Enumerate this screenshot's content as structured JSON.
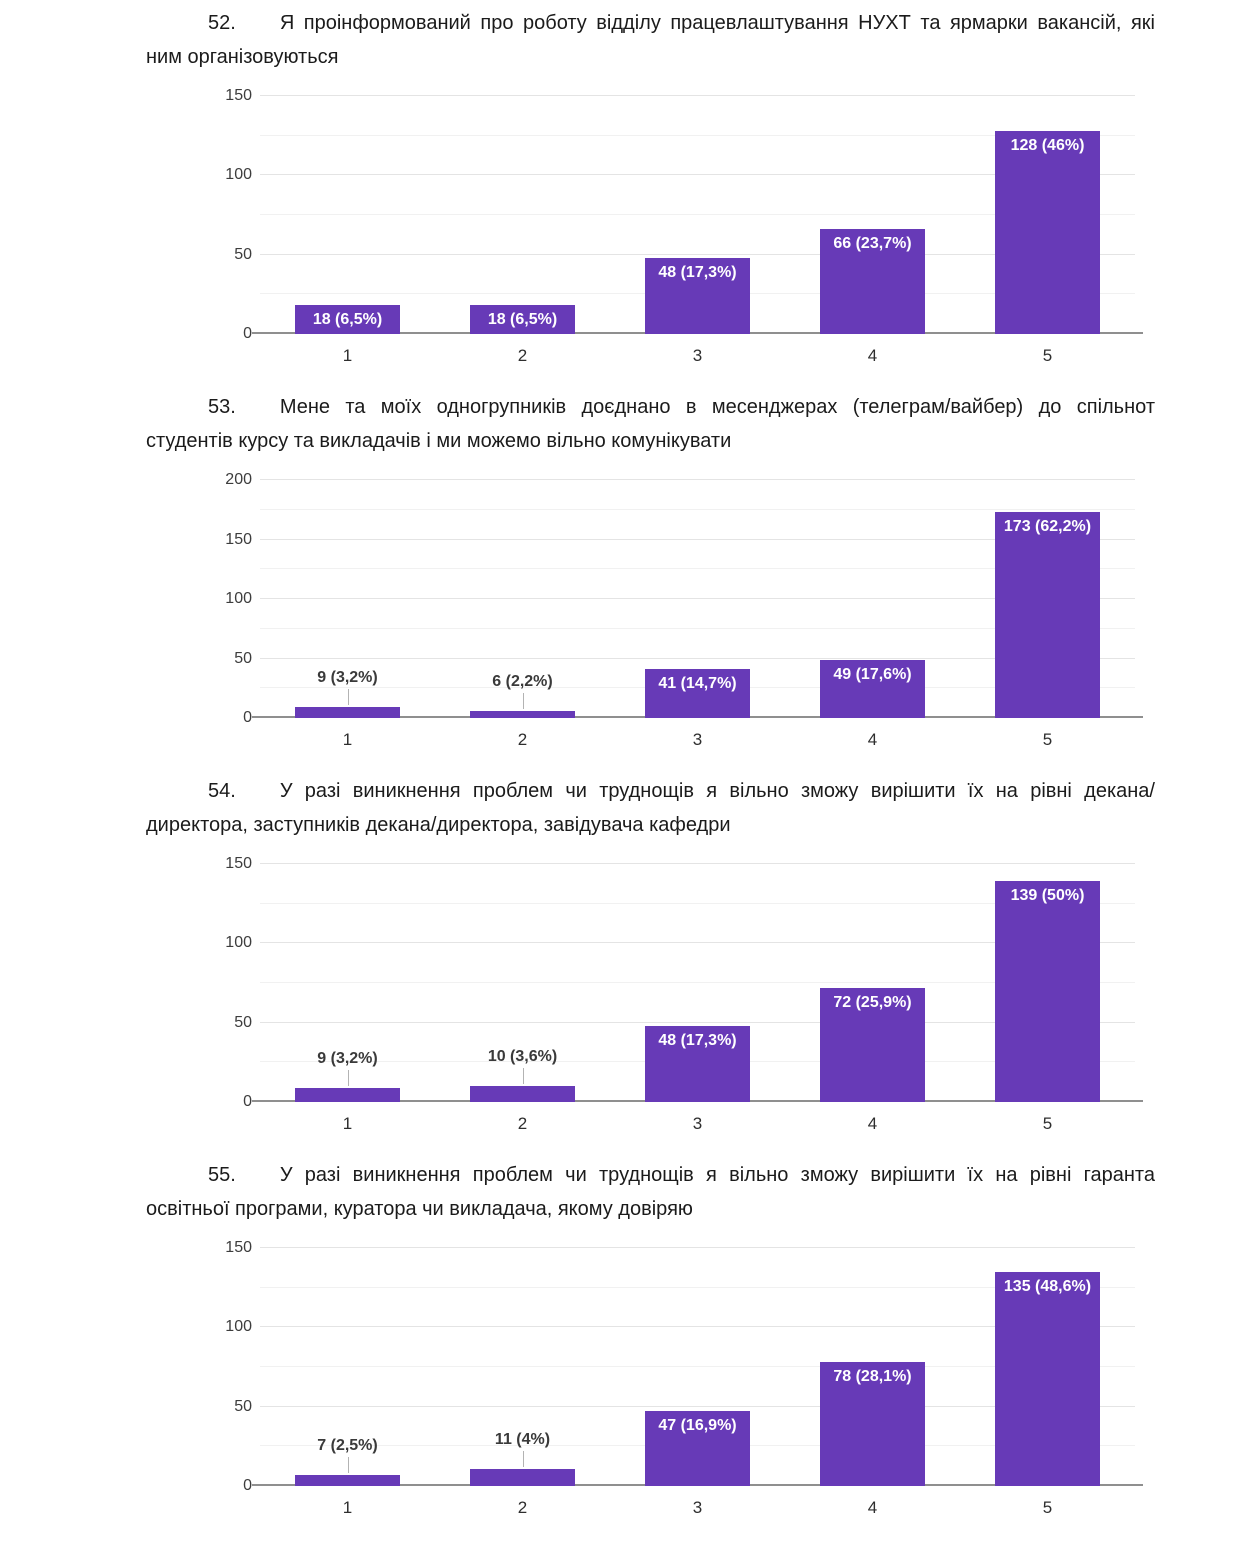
{
  "page": {
    "background": "#ffffff",
    "accent_color": "#673ab7",
    "questions": [
      {
        "number": "52.",
        "text": "Я проінформований про роботу відділу працевлаштування НУХТ та ярмарки вакансій, які ним організовуються"
      },
      {
        "number": "53.",
        "text": "Мене та моїх одногрупників доєднано в месенджерах (телеграм/вайбер) до спільнот студентів курсу та викладачів і ми можемо вільно комунікувати"
      },
      {
        "number": "54.",
        "text": "У разі виникнення проблем чи труднощів я вільно зможу вирішити їх на рівні декана/директора, заступників декана/директора, завідувача кафедри"
      },
      {
        "number": "55.",
        "text": "У разі виникнення проблем чи труднощів я вільно зможу вирішити їх на рівні гаранта освітньої програми, куратора чи викладача, якому довіряю"
      }
    ]
  },
  "chart_data": [
    {
      "type": "bar",
      "question_number": "52",
      "categories": [
        "1",
        "2",
        "3",
        "4",
        "5"
      ],
      "values": [
        18,
        18,
        48,
        66,
        128
      ],
      "labels": [
        "18 (6,5%)",
        "18 (6,5%)",
        "48 (17,3%)",
        "66 (23,7%)",
        "128 (46%)"
      ],
      "title": "",
      "xlabel": "",
      "ylabel": "",
      "ylim": [
        0,
        150
      ],
      "yticks": [
        0,
        50,
        100,
        150
      ],
      "ytick_step": 50,
      "grid_step": 25,
      "grid": true,
      "legend": "none",
      "bar_color": "#673ab7"
    },
    {
      "type": "bar",
      "question_number": "53",
      "categories": [
        "1",
        "2",
        "3",
        "4",
        "5"
      ],
      "values": [
        9,
        6,
        41,
        49,
        173
      ],
      "labels": [
        "9 (3,2%)",
        "6 (2,2%)",
        "41 (14,7%)",
        "49 (17,6%)",
        "173 (62,2%)"
      ],
      "title": "",
      "xlabel": "",
      "ylabel": "",
      "ylim": [
        0,
        200
      ],
      "yticks": [
        0,
        50,
        100,
        150,
        200
      ],
      "ytick_step": 50,
      "grid_step": 25,
      "grid": true,
      "legend": "none",
      "bar_color": "#673ab7"
    },
    {
      "type": "bar",
      "question_number": "54",
      "categories": [
        "1",
        "2",
        "3",
        "4",
        "5"
      ],
      "values": [
        9,
        10,
        48,
        72,
        139
      ],
      "labels": [
        "9 (3,2%)",
        "10 (3,6%)",
        "48 (17,3%)",
        "72 (25,9%)",
        "139 (50%)"
      ],
      "title": "",
      "xlabel": "",
      "ylabel": "",
      "ylim": [
        0,
        150
      ],
      "yticks": [
        0,
        50,
        100,
        150
      ],
      "ytick_step": 50,
      "grid_step": 25,
      "grid": true,
      "legend": "none",
      "bar_color": "#673ab7"
    },
    {
      "type": "bar",
      "question_number": "55",
      "categories": [
        "1",
        "2",
        "3",
        "4",
        "5"
      ],
      "values": [
        7,
        11,
        47,
        78,
        135
      ],
      "labels": [
        "7 (2,5%)",
        "11 (4%)",
        "47 (16,9%)",
        "78 (28,1%)",
        "135 (48,6%)"
      ],
      "title": "",
      "xlabel": "",
      "ylabel": "",
      "ylim": [
        0,
        150
      ],
      "yticks": [
        0,
        50,
        100,
        150
      ],
      "ytick_step": 50,
      "grid_step": 25,
      "grid": true,
      "legend": "none",
      "bar_color": "#673ab7"
    }
  ]
}
